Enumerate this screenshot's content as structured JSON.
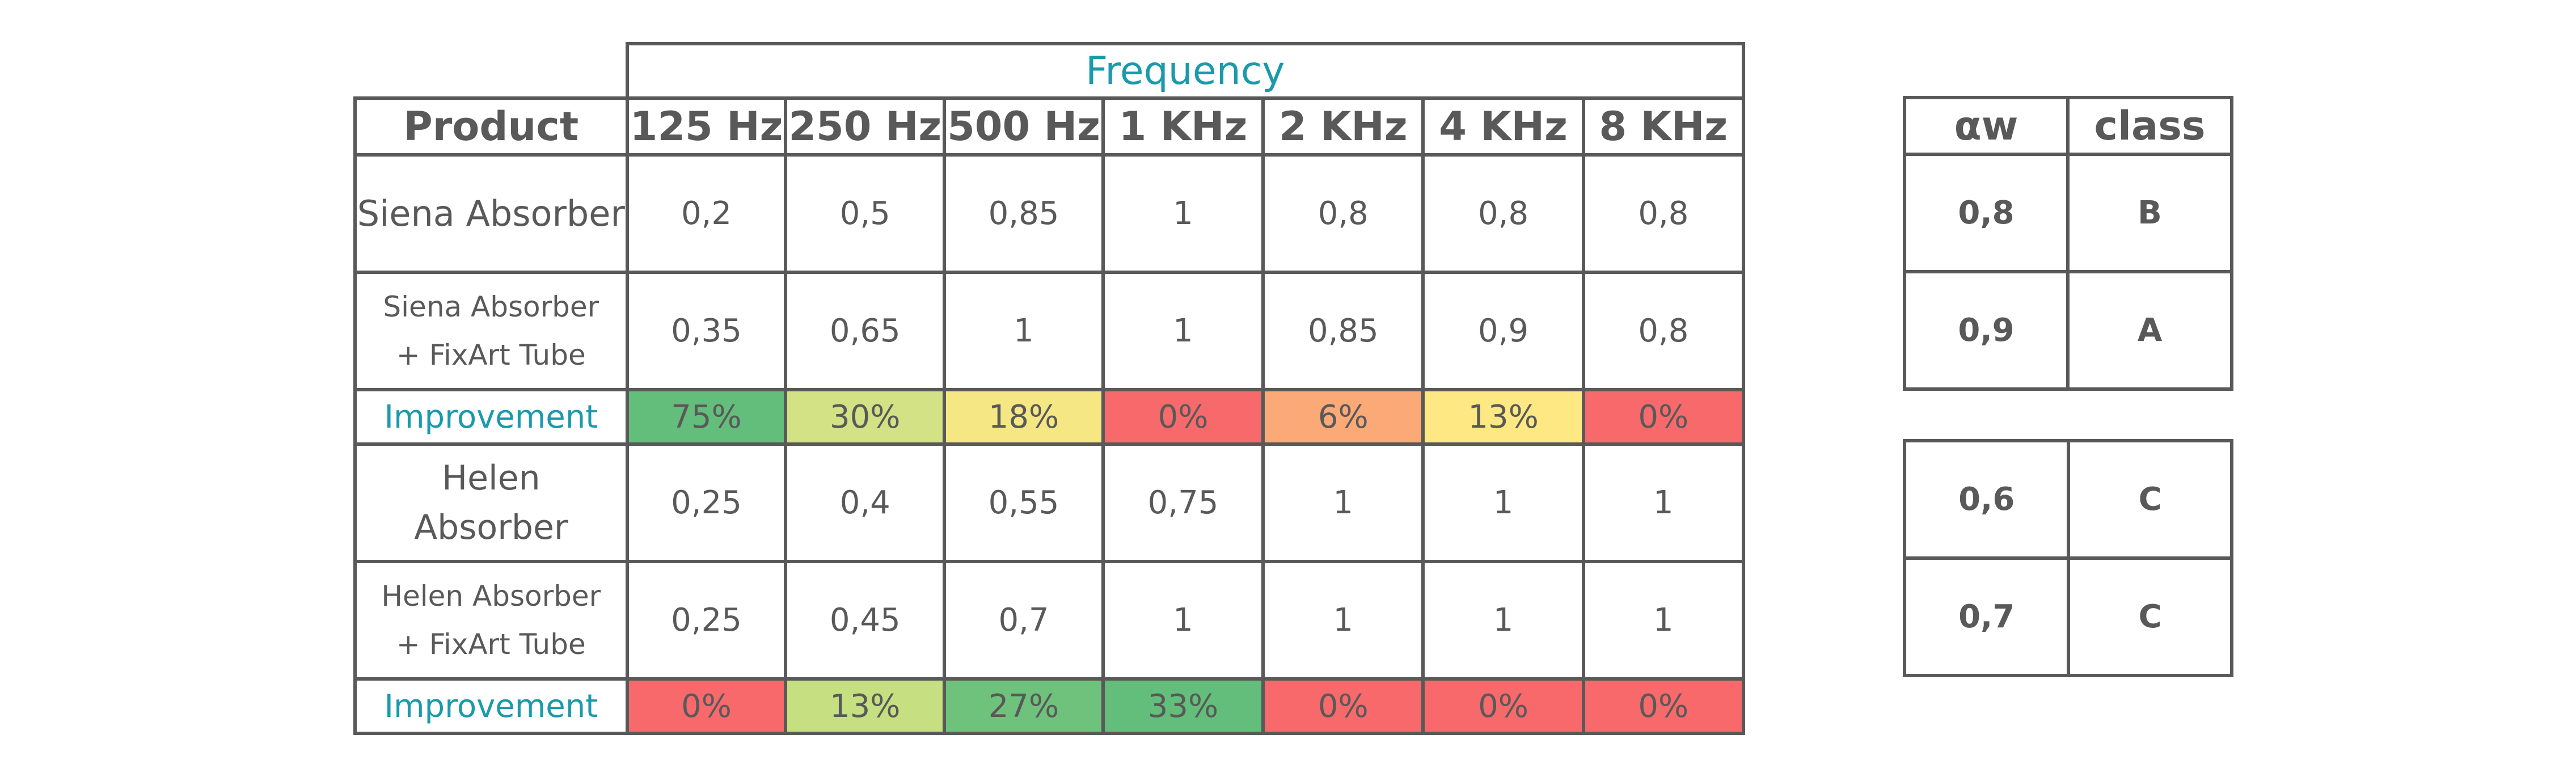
{
  "table": {
    "frequency_header": "Frequency",
    "product_header": "Product",
    "frequency_labels": [
      "125 Hz",
      "250 Hz",
      "500 Hz",
      "1 KHz",
      "2 KHz",
      "4 KHz",
      "8 KHz"
    ],
    "rows": [
      {
        "type": "product",
        "name": "Siena Absorber",
        "values": [
          "0,2",
          "0,5",
          "0,85",
          "1",
          "0,8",
          "0,8",
          "0,8"
        ]
      },
      {
        "type": "product",
        "name_line1": "Siena Absorber",
        "name_line2": "+ FixArt Tube",
        "values": [
          "0,35",
          "0,65",
          "1",
          "1",
          "0,85",
          "0,9",
          "0,8"
        ]
      },
      {
        "type": "improvement",
        "label": "Improvement",
        "values": [
          "75%",
          "30%",
          "18%",
          "0%",
          "6%",
          "13%",
          "0%"
        ],
        "colors": [
          "#63be7b",
          "#d2e284",
          "#f5e884",
          "#f8696b",
          "#fbaa77",
          "#fee883",
          "#f8696b"
        ]
      },
      {
        "type": "product",
        "name_line1": "Helen",
        "name_line2": "Absorber",
        "values": [
          "0,25",
          "0,4",
          "0,55",
          "0,75",
          "1",
          "1",
          "1"
        ]
      },
      {
        "type": "product",
        "name_line1": "Helen Absorber",
        "name_line2": "+ FixArt Tube",
        "values": [
          "0,25",
          "0,45",
          "0,7",
          "1",
          "1",
          "1",
          "1"
        ]
      },
      {
        "type": "improvement",
        "label": "Improvement",
        "values": [
          "0%",
          "13%",
          "27%",
          "33%",
          "0%",
          "0%",
          "0%"
        ],
        "colors": [
          "#f8696b",
          "#c5df81",
          "#6ec27c",
          "#63be7b",
          "#f8696b",
          "#f8696b",
          "#f8696b"
        ]
      }
    ]
  },
  "rating": {
    "aw_header": "αw",
    "class_header": "class",
    "siena": [
      {
        "aw": "0,8",
        "class": "B"
      },
      {
        "aw": "0,9",
        "class": "A"
      }
    ],
    "helen": [
      {
        "aw": "0,6",
        "class": "C"
      },
      {
        "aw": "0,7",
        "class": "C"
      }
    ]
  }
}
